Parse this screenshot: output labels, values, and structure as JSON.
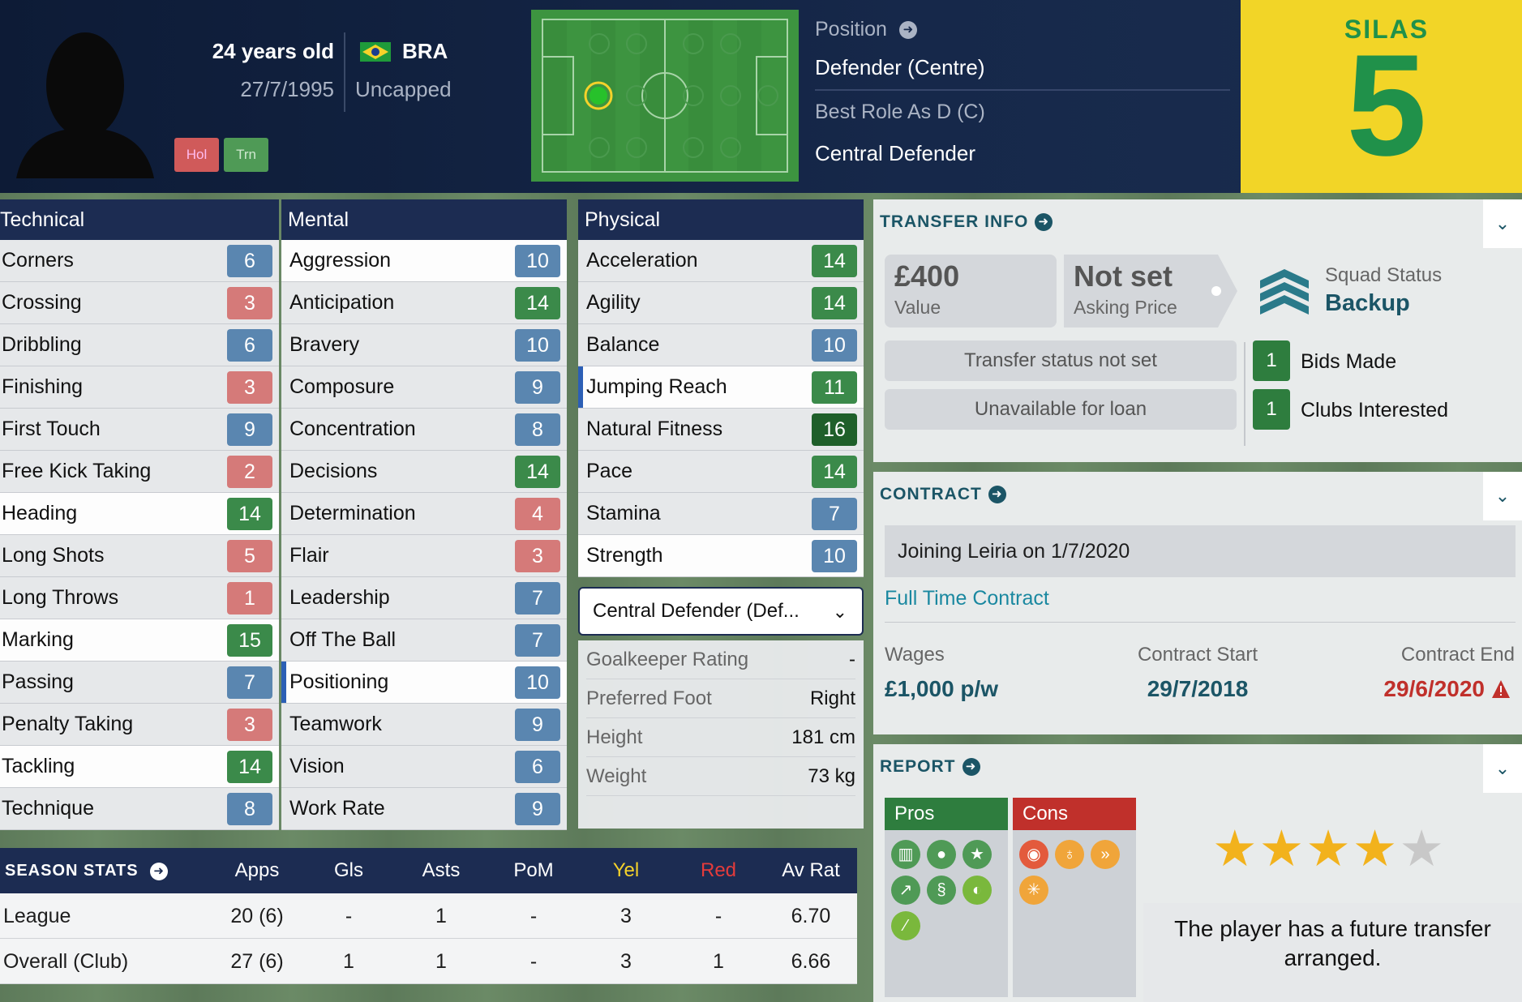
{
  "header": {
    "age": "24 years old",
    "dob": "27/7/1995",
    "nation": "BRA",
    "caps": "Uncapped",
    "badge_hol": "Hol",
    "badge_trn": "Trn",
    "position_label": "Position",
    "position_value": "Defender (Centre)",
    "best_role_label": "Best Role As D (C)",
    "best_role_value": "Central Defender",
    "shirt_name": "SILAS",
    "shirt_number": "5"
  },
  "technical": {
    "title": "Technical",
    "attrs": [
      {
        "name": "Corners",
        "value": "6"
      },
      {
        "name": "Crossing",
        "value": "3"
      },
      {
        "name": "Dribbling",
        "value": "6"
      },
      {
        "name": "Finishing",
        "value": "3"
      },
      {
        "name": "First Touch",
        "value": "9"
      },
      {
        "name": "Free Kick Taking",
        "value": "2"
      },
      {
        "name": "Heading",
        "value": "14"
      },
      {
        "name": "Long Shots",
        "value": "5"
      },
      {
        "name": "Long Throws",
        "value": "1"
      },
      {
        "name": "Marking",
        "value": "15"
      },
      {
        "name": "Passing",
        "value": "7"
      },
      {
        "name": "Penalty Taking",
        "value": "3"
      },
      {
        "name": "Tackling",
        "value": "14"
      },
      {
        "name": "Technique",
        "value": "8"
      }
    ]
  },
  "mental": {
    "title": "Mental",
    "attrs": [
      {
        "name": "Aggression",
        "value": "10"
      },
      {
        "name": "Anticipation",
        "value": "14"
      },
      {
        "name": "Bravery",
        "value": "10"
      },
      {
        "name": "Composure",
        "value": "9"
      },
      {
        "name": "Concentration",
        "value": "8"
      },
      {
        "name": "Decisions",
        "value": "14"
      },
      {
        "name": "Determination",
        "value": "4"
      },
      {
        "name": "Flair",
        "value": "3"
      },
      {
        "name": "Leadership",
        "value": "7"
      },
      {
        "name": "Off The Ball",
        "value": "7"
      },
      {
        "name": "Positioning",
        "value": "10"
      },
      {
        "name": "Teamwork",
        "value": "9"
      },
      {
        "name": "Vision",
        "value": "6"
      },
      {
        "name": "Work Rate",
        "value": "9"
      }
    ]
  },
  "physical": {
    "title": "Physical",
    "attrs": [
      {
        "name": "Acceleration",
        "value": "14"
      },
      {
        "name": "Agility",
        "value": "14"
      },
      {
        "name": "Balance",
        "value": "10"
      },
      {
        "name": "Jumping Reach",
        "value": "11"
      },
      {
        "name": "Natural Fitness",
        "value": "16"
      },
      {
        "name": "Pace",
        "value": "14"
      },
      {
        "name": "Stamina",
        "value": "7"
      },
      {
        "name": "Strength",
        "value": "10"
      }
    ],
    "role_dropdown": "Central Defender (Def...",
    "info": [
      {
        "label": "Goalkeeper Rating",
        "value": "-"
      },
      {
        "label": "Preferred Foot",
        "value": "Right"
      },
      {
        "label": "Height",
        "value": "181 cm"
      },
      {
        "label": "Weight",
        "value": "73 kg"
      }
    ]
  },
  "season_stats": {
    "title": "SEASON STATS",
    "columns": [
      "Apps",
      "Gls",
      "Asts",
      "PoM",
      "Yel",
      "Red",
      "Av Rat"
    ],
    "rows": [
      {
        "name": "League",
        "cells": [
          "20 (6)",
          "-",
          "1",
          "-",
          "3",
          "-",
          "6.70"
        ]
      },
      {
        "name": "Overall (Club)",
        "cells": [
          "27 (6)",
          "1",
          "1",
          "-",
          "3",
          "1",
          "6.66"
        ]
      }
    ]
  },
  "transfer": {
    "title": "TRANSFER INFO",
    "value_amount": "£400",
    "value_label": "Value",
    "asking_amount": "Not set",
    "asking_label": "Asking Price",
    "squad_status_label": "Squad Status",
    "squad_status_value": "Backup",
    "transfer_status": "Transfer status not set",
    "loan_status": "Unavailable for loan",
    "bids_count": "1",
    "bids_label": "Bids Made",
    "clubs_count": "1",
    "clubs_label": "Clubs Interested"
  },
  "contract": {
    "title": "CONTRACT",
    "joining": "Joining Leiria on 1/7/2020",
    "type": "Full Time Contract",
    "wages_label": "Wages",
    "wages_value": "£1,000 p/w",
    "start_label": "Contract Start",
    "start_value": "29/7/2018",
    "end_label": "Contract End",
    "end_value": "29/6/2020"
  },
  "report": {
    "title": "REPORT",
    "pros_label": "Pros",
    "cons_label": "Cons",
    "stars": 4,
    "stars_max": 5,
    "note": "The player has a future transfer arranged."
  },
  "colors": {
    "navy": "#1c2c52",
    "teal": "#1b5566",
    "attr_blue": "#5a86b0",
    "attr_red": "#d57a79",
    "attr_green": "#3b8a4a",
    "attr_dark_green": "#1f5f2a",
    "shirt_yellow": "#f2d527",
    "shirt_green": "#20914a",
    "contract_end": "#c0302b",
    "yellow_card": "#f5d22a",
    "red_card": "#e43b3b"
  }
}
